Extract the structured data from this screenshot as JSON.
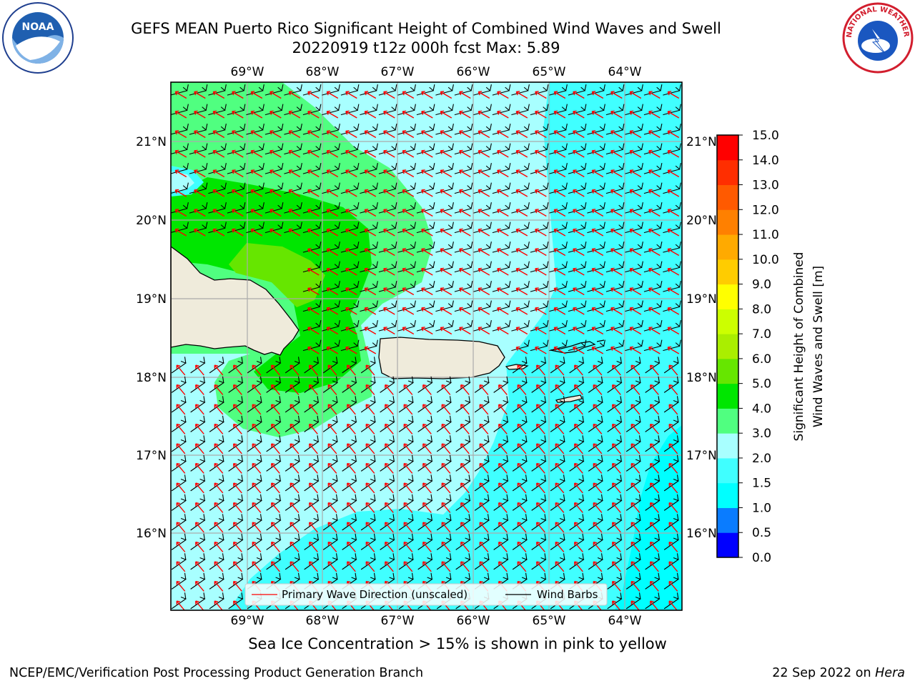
{
  "header": {
    "title_line1": "GEFS MEAN Puerto Rico Significant Height of Combined Wind Waves and Swell",
    "title_line2": "20220919 t12z 000h fcst   Max: 5.89"
  },
  "logos": {
    "left": "NOAA",
    "right": "NATIONAL WEATHER SERVICE"
  },
  "map": {
    "lon_labels": [
      "69°W",
      "68°W",
      "67°W",
      "66°W",
      "65°W",
      "64°W"
    ],
    "lat_labels": [
      "21°N",
      "20°N",
      "19°N",
      "18°N",
      "17°N",
      "16°N"
    ],
    "legend": {
      "wave_label": "Primary Wave Direction (unscaled)",
      "barb_label": "Wind Barbs"
    }
  },
  "colorbar": {
    "label_line1": "Significant Height of Combined",
    "label_line2": "Wind Waves and Swell [m]",
    "ticks": [
      "0.0",
      "0.5",
      "1.0",
      "1.5",
      "2.0",
      "3.0",
      "4.0",
      "5.0",
      "6.0",
      "7.0",
      "8.0",
      "9.0",
      "10.0",
      "11.0",
      "12.0",
      "13.0",
      "14.0",
      "15.0"
    ],
    "colors": [
      "#0000ff",
      "#0a7cff",
      "#00ffff",
      "#40ffff",
      "#a8ffff",
      "#50ff80",
      "#00e600",
      "#66e600",
      "#aaee00",
      "#ccff00",
      "#ffff00",
      "#ffcc00",
      "#ffaa00",
      "#ff8000",
      "#ff5a00",
      "#ff2e00",
      "#ff0000"
    ]
  },
  "footer": {
    "note": "Sea Ice Concentration > 15% is shown in pink to yellow",
    "left": "NCEP/EMC/Verification Post Processing Product Generation Branch",
    "right_date": "22 Sep 2022 on",
    "right_machine": "Hera"
  },
  "colors": {
    "land": "#efebdb",
    "wave_arrow": "#ff0000",
    "wind_barb": "#000000"
  }
}
